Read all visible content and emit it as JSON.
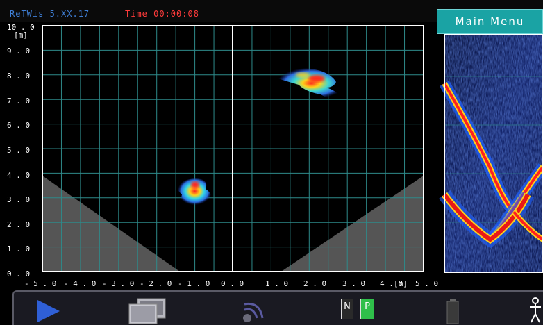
{
  "header": {
    "app_name": "ReTWis 5.XX.17",
    "time_label": "Time 00:00:08",
    "main_menu_label": "Main Menu"
  },
  "colors": {
    "grid": "#2e8a8a",
    "axis_frame": "#ffffff",
    "dead_zone": "#555555",
    "menu_accent": "#1aa3a4"
  },
  "chart_data": {
    "type": "heatmap",
    "x_range": [
      -5.0,
      5.0
    ],
    "y_range": [
      0.0,
      10.0
    ],
    "x_ticks": [
      "- 5 . 0",
      "- 4 . 0",
      "- 3 . 0",
      "- 2 . 0",
      "- 1 . 0",
      "0 . 0",
      "1 . 0",
      "2 . 0",
      "3 . 0",
      "4 . 0",
      "[m]",
      "5 . 0"
    ],
    "y_ticks": [
      "10 . 0",
      "[m]",
      "9 . 0",
      "8 . 0",
      "7 . 0",
      "6 . 0",
      "5 . 0",
      "4 . 0",
      "3 . 0",
      "2 . 0",
      "1 . 0",
      "0 . 0"
    ],
    "grid": true,
    "blobs": [
      {
        "x": -1.0,
        "y": 3.5,
        "peak": "red"
      },
      {
        "x": 2.0,
        "y": 7.9,
        "peak": "red"
      }
    ]
  },
  "toolbar": {
    "icons": [
      "play-icon",
      "monitors-icon",
      "signal-icon",
      "battery-icon",
      "person-icon"
    ],
    "n_label": "N",
    "p_label": "P"
  }
}
